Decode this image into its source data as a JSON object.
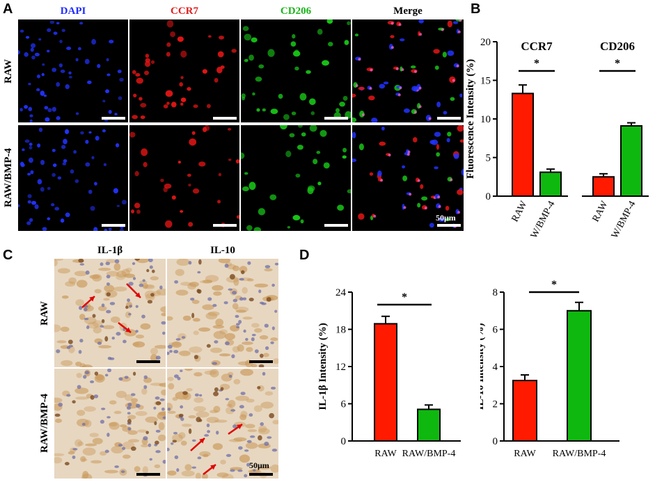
{
  "panel_a": {
    "label": "A",
    "columns": [
      "DAPI",
      "CCR7",
      "CD206",
      "Merge"
    ],
    "column_colors": [
      "#1f2cff",
      "#e21f1f",
      "#19b619",
      "#000000"
    ],
    "rows": [
      "RAW",
      "RAW/BMP-4"
    ],
    "scale_label": "50μm"
  },
  "panel_c": {
    "label": "C",
    "columns": [
      "IL-1β",
      "IL-10"
    ],
    "rows": [
      "RAW",
      "RAW/BMP-4"
    ],
    "scale_label": "50μm"
  },
  "colors": {
    "raw": "#ff1a00",
    "bmp": "#0fb80f"
  },
  "chart_data": [
    {
      "panel": "B",
      "type": "bar",
      "ylabel": "Fluorescence Intensity (%)",
      "ylim": [
        0,
        20
      ],
      "yticks": [
        0,
        5,
        10,
        15,
        20
      ],
      "groups": [
        {
          "title": "CCR7",
          "categories": [
            "RAW",
            "RAW/BMP-4"
          ],
          "values": [
            13.3,
            3.1
          ],
          "errors": [
            1.1,
            0.4
          ],
          "significance": "*"
        },
        {
          "title": "CD206",
          "categories": [
            "RAW",
            "RAW/BMP-4"
          ],
          "values": [
            2.5,
            9.1
          ],
          "errors": [
            0.4,
            0.4
          ],
          "significance": "*"
        }
      ]
    },
    {
      "panel": "D",
      "type": "bar",
      "ylabel": "IL-1β Intensity (%)",
      "ylim": [
        0,
        24
      ],
      "yticks": [
        0,
        6,
        12,
        18,
        24
      ],
      "categories": [
        "RAW",
        "RAW/BMP-4"
      ],
      "values": [
        18.9,
        5.1
      ],
      "errors": [
        1.2,
        0.7
      ],
      "significance": "*"
    },
    {
      "panel": "D",
      "type": "bar",
      "ylabel": "IL-10 Intensity (%)",
      "ylim": [
        0,
        8
      ],
      "yticks": [
        0,
        2,
        4,
        6,
        8
      ],
      "categories": [
        "RAW",
        "RAW/BMP-4"
      ],
      "values": [
        3.25,
        7.0
      ],
      "errors": [
        0.3,
        0.45
      ],
      "significance": "*"
    }
  ]
}
